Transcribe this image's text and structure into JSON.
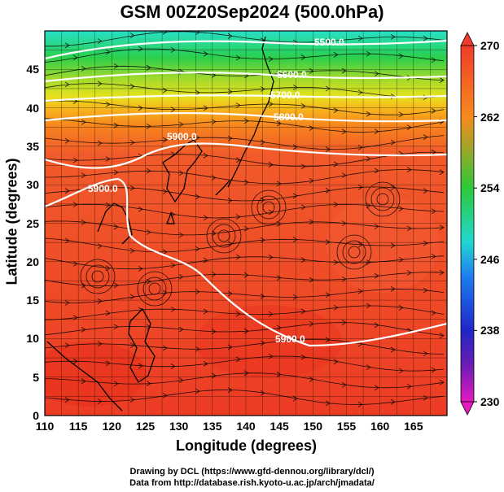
{
  "title": "GSM 00Z20Sep2024 (500.0hPa)",
  "xlabel": "Longitude (degrees)",
  "ylabel": "Latitude (degrees)",
  "x_ticks": [
    "110",
    "115",
    "120",
    "125",
    "130",
    "135",
    "140",
    "145",
    "150",
    "155",
    "160",
    "165"
  ],
  "y_ticks": [
    "0",
    "5",
    "10",
    "15",
    "20",
    "25",
    "30",
    "35",
    "40",
    "45"
  ],
  "colorbar_ticks": [
    "270",
    "262",
    "254",
    "246",
    "238",
    "230"
  ],
  "contour_labels": [
    "5900.0",
    "5800.0",
    "5700.0",
    "5600.0",
    "5500.0",
    "5900.0",
    "5900.0"
  ],
  "credits": {
    "line1": "Drawing by DCL (https://www.gfd-dennou.org/library/dcl/)",
    "line2": "Data from http://database.rish.kyoto-u.ac.jp/arch/jmadata/"
  },
  "chart_data": {
    "type": "heatmap",
    "variable": "temperature (K) with geopotential height contours and wind streamlines",
    "xlim": [
      110,
      170
    ],
    "ylim": [
      0,
      50
    ],
    "colorbar_range": [
      230,
      270
    ],
    "colors": {
      "warm_red": "#ef4a2c",
      "orange": "#f7821e",
      "yellow": "#e6e61e",
      "green": "#32c832",
      "cyan": "#1ee6d2",
      "contour_line": "#ffffff",
      "streamline": "#000000"
    },
    "contours": [
      {
        "label": "5900.0",
        "value": 5900
      },
      {
        "label": "5800.0",
        "value": 5800
      },
      {
        "label": "5700.0",
        "value": 5700
      },
      {
        "label": "5600.0",
        "value": 5600
      },
      {
        "label": "5500.0",
        "value": 5500
      }
    ]
  }
}
